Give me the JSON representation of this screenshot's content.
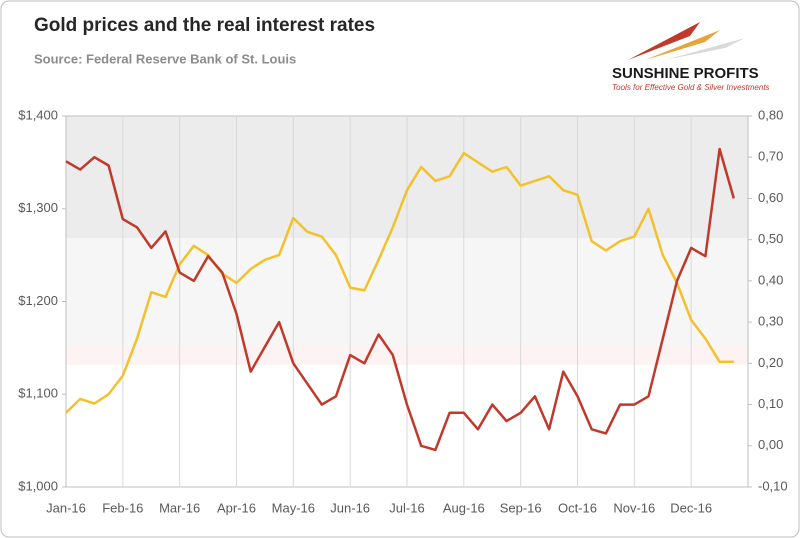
{
  "chart_data": {
    "type": "line",
    "title": "Gold prices and the real interest rates",
    "subtitle": "Source: Federal Reserve Bank of St. Louis",
    "logo": "SUNSHINE PROFITS",
    "logo_tagline": "Tools for Effective Gold & Silver Investments",
    "categories": [
      "Jan-16",
      null,
      null,
      null,
      "Feb-16",
      null,
      null,
      null,
      "Mar-16",
      null,
      null,
      null,
      "Apr-16",
      null,
      null,
      null,
      "May-16",
      null,
      null,
      null,
      "Jun-16",
      null,
      null,
      null,
      "Jul-16",
      null,
      null,
      null,
      "Aug-16",
      null,
      null,
      null,
      "Sep-16",
      null,
      null,
      null,
      "Oct-16",
      null,
      null,
      null,
      "Nov-16",
      null,
      null,
      null,
      "Dec-16",
      null,
      null,
      null
    ],
    "series": [
      {
        "name": "Gold price",
        "color": "#f2c12e",
        "axis": "y",
        "values": [
          1080,
          1095,
          1090,
          1100,
          1120,
          1160,
          1210,
          1205,
          1240,
          1260,
          1250,
          1230,
          1220,
          1235,
          1245,
          1250,
          1290,
          1275,
          1270,
          1250,
          1215,
          1212,
          1245,
          1280,
          1320,
          1345,
          1330,
          1335,
          1360,
          1350,
          1340,
          1345,
          1325,
          1330,
          1335,
          1320,
          1315,
          1265,
          1255,
          1265,
          1270,
          1300,
          1250,
          1220,
          1180,
          1160,
          1135,
          1135
        ]
      },
      {
        "name": "Real interest rate",
        "color": "#c0392b",
        "axis": "y2",
        "values": [
          0.69,
          0.67,
          0.7,
          0.68,
          0.55,
          0.53,
          0.48,
          0.52,
          0.42,
          0.4,
          0.46,
          0.42,
          0.32,
          0.18,
          0.24,
          0.3,
          0.2,
          0.15,
          0.1,
          0.12,
          0.22,
          0.2,
          0.27,
          0.22,
          0.1,
          0.0,
          -0.01,
          0.08,
          0.08,
          0.04,
          0.1,
          0.06,
          0.08,
          0.12,
          0.04,
          0.18,
          0.12,
          0.04,
          0.03,
          0.1,
          0.1,
          0.12,
          0.26,
          0.4,
          0.48,
          0.46,
          0.72,
          0.6
        ]
      }
    ],
    "ylim": [
      1000,
      1400
    ],
    "yticks": [
      {
        "value": 1000,
        "label": "$1,000"
      },
      {
        "value": 1100,
        "label": "$1,100"
      },
      {
        "value": 1200,
        "label": "$1,200"
      },
      {
        "value": 1300,
        "label": "$1,300"
      },
      {
        "value": 1400,
        "label": "$1,400"
      }
    ],
    "y2lim": [
      -0.1,
      0.8
    ],
    "y2ticks": [
      {
        "value": -0.1,
        "label": "-0,10"
      },
      {
        "value": 0,
        "label": "0,00"
      },
      {
        "value": 0.1,
        "label": "0,10"
      },
      {
        "value": 0.2,
        "label": "0,20"
      },
      {
        "value": 0.3,
        "label": "0,30"
      },
      {
        "value": 0.4,
        "label": "0,40"
      },
      {
        "value": 0.5,
        "label": "0,50"
      },
      {
        "value": 0.6,
        "label": "0,60"
      },
      {
        "value": 0.7,
        "label": "0,70"
      },
      {
        "value": 0.8,
        "label": "0,80"
      }
    ]
  }
}
